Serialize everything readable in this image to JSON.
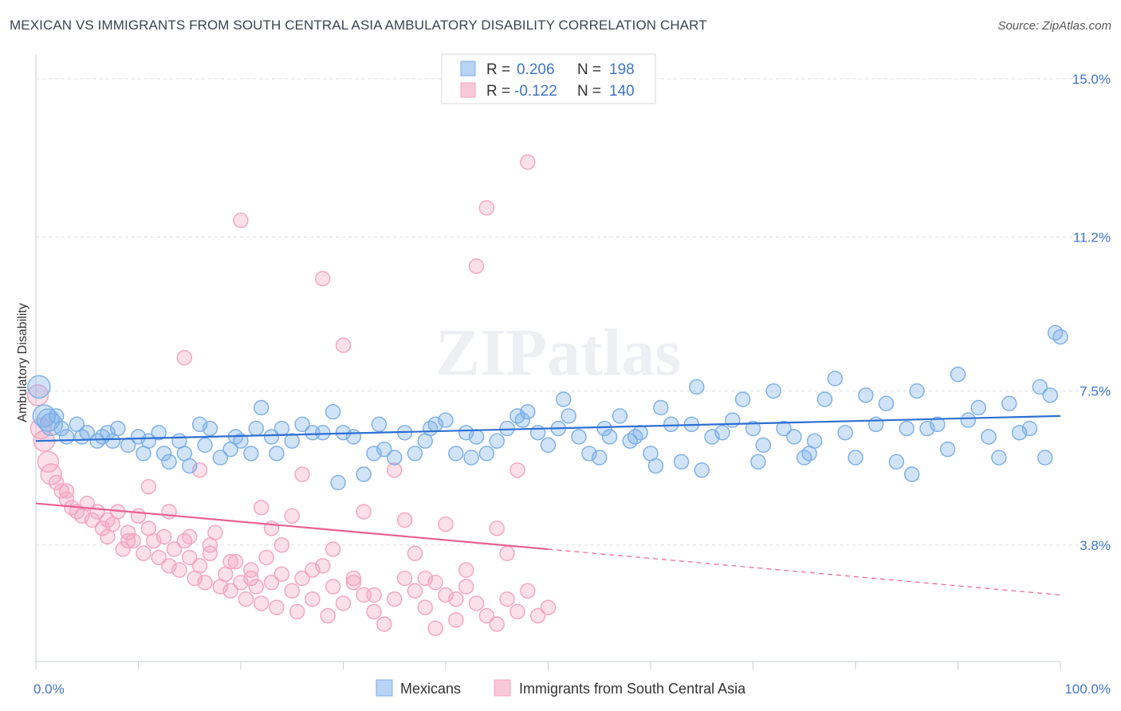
{
  "title": "MEXICAN VS IMMIGRANTS FROM SOUTH CENTRAL ASIA AMBULATORY DISABILITY CORRELATION CHART",
  "source": "Source: ZipAtlas.com",
  "watermark": "ZIPatlas",
  "chart_data": {
    "type": "scatter",
    "title": "MEXICAN VS IMMIGRANTS FROM SOUTH CENTRAL ASIA AMBULATORY DISABILITY CORRELATION CHART",
    "xlabel": "",
    "ylabel": "Ambulatory Disability",
    "xlim": [
      0,
      100
    ],
    "ylim": [
      1.0,
      15.4
    ],
    "x_tick_labels": [
      "0.0%",
      "100.0%"
    ],
    "y_ticks": [
      3.8,
      7.5,
      11.2,
      15.0
    ],
    "y_tick_labels": [
      "3.8%",
      "7.5%",
      "11.2%",
      "15.0%"
    ],
    "grid": true,
    "legend": {
      "placement": "top-center",
      "entries": [
        {
          "r_label": "R =",
          "r_value": "0.206",
          "n_label": "N =",
          "n_value": "198"
        },
        {
          "r_label": "R =",
          "r_value": "-0.122",
          "n_label": "N =",
          "n_value": "140"
        }
      ]
    },
    "series": [
      {
        "name": "Mexicans",
        "color": "#7aaee8",
        "line_color": "#2e6fd0",
        "trend": {
          "x0": 0,
          "y0": 6.3,
          "x1": 100,
          "y1": 6.9,
          "dashed_from": null
        },
        "points": [
          [
            0.3,
            7.6
          ],
          [
            0.8,
            6.9
          ],
          [
            1.2,
            6.8
          ],
          [
            1.5,
            6.7
          ],
          [
            2.0,
            6.9
          ],
          [
            2.5,
            6.6
          ],
          [
            3,
            6.4
          ],
          [
            4,
            6.7
          ],
          [
            4.5,
            6.4
          ],
          [
            5,
            6.5
          ],
          [
            6,
            6.3
          ],
          [
            6.5,
            6.4
          ],
          [
            7,
            6.5
          ],
          [
            7.5,
            6.3
          ],
          [
            8,
            6.6
          ],
          [
            9,
            6.2
          ],
          [
            10,
            6.4
          ],
          [
            10.5,
            6.0
          ],
          [
            11,
            6.3
          ],
          [
            12,
            6.5
          ],
          [
            12.5,
            6.0
          ],
          [
            13,
            5.8
          ],
          [
            14,
            6.3
          ],
          [
            14.5,
            6.0
          ],
          [
            15,
            5.7
          ],
          [
            16,
            6.7
          ],
          [
            16.5,
            6.2
          ],
          [
            17,
            6.6
          ],
          [
            18,
            5.9
          ],
          [
            19,
            6.1
          ],
          [
            19.5,
            6.4
          ],
          [
            20,
            6.3
          ],
          [
            21,
            6.0
          ],
          [
            21.5,
            6.6
          ],
          [
            22,
            7.1
          ],
          [
            23,
            6.4
          ],
          [
            23.5,
            6.0
          ],
          [
            24,
            6.6
          ],
          [
            25,
            6.3
          ],
          [
            26,
            6.7
          ],
          [
            27,
            6.5
          ],
          [
            28,
            6.5
          ],
          [
            29,
            7.0
          ],
          [
            29.5,
            5.3
          ],
          [
            30,
            6.5
          ],
          [
            31,
            6.4
          ],
          [
            32,
            5.5
          ],
          [
            33,
            6.0
          ],
          [
            33.5,
            6.7
          ],
          [
            34,
            6.1
          ],
          [
            35,
            5.9
          ],
          [
            36,
            6.5
          ],
          [
            37,
            6.0
          ],
          [
            38,
            6.3
          ],
          [
            38.5,
            6.6
          ],
          [
            39,
            6.7
          ],
          [
            40,
            6.8
          ],
          [
            41,
            6.0
          ],
          [
            42,
            6.5
          ],
          [
            42.5,
            5.9
          ],
          [
            43,
            6.4
          ],
          [
            44,
            6.0
          ],
          [
            45,
            6.3
          ],
          [
            46,
            6.6
          ],
          [
            47,
            6.9
          ],
          [
            47.5,
            6.8
          ],
          [
            48,
            7.0
          ],
          [
            49,
            6.5
          ],
          [
            50,
            6.2
          ],
          [
            51,
            6.6
          ],
          [
            51.5,
            7.3
          ],
          [
            52,
            6.9
          ],
          [
            53,
            6.4
          ],
          [
            54,
            6.0
          ],
          [
            55,
            5.9
          ],
          [
            55.5,
            6.6
          ],
          [
            56,
            6.4
          ],
          [
            57,
            6.9
          ],
          [
            58,
            6.3
          ],
          [
            58.5,
            6.4
          ],
          [
            59,
            6.5
          ],
          [
            60,
            6.0
          ],
          [
            60.5,
            5.7
          ],
          [
            61,
            7.1
          ],
          [
            62,
            6.7
          ],
          [
            63,
            5.8
          ],
          [
            64,
            6.7
          ],
          [
            64.5,
            7.6
          ],
          [
            65,
            5.6
          ],
          [
            66,
            6.4
          ],
          [
            67,
            6.5
          ],
          [
            68,
            6.8
          ],
          [
            69,
            7.3
          ],
          [
            70,
            6.6
          ],
          [
            70.5,
            5.8
          ],
          [
            71,
            6.2
          ],
          [
            72,
            7.5
          ],
          [
            73,
            6.6
          ],
          [
            74,
            6.4
          ],
          [
            75,
            5.9
          ],
          [
            75.5,
            6.0
          ],
          [
            76,
            6.3
          ],
          [
            77,
            7.3
          ],
          [
            78,
            7.8
          ],
          [
            79,
            6.5
          ],
          [
            80,
            5.9
          ],
          [
            81,
            7.4
          ],
          [
            82,
            6.7
          ],
          [
            83,
            7.2
          ],
          [
            84,
            5.8
          ],
          [
            85,
            6.6
          ],
          [
            85.5,
            5.5
          ],
          [
            86,
            7.5
          ],
          [
            87,
            6.6
          ],
          [
            88,
            6.7
          ],
          [
            89,
            6.1
          ],
          [
            90,
            7.9
          ],
          [
            91,
            6.8
          ],
          [
            92,
            7.1
          ],
          [
            93,
            6.4
          ],
          [
            94,
            5.9
          ],
          [
            95,
            7.2
          ],
          [
            96,
            6.5
          ],
          [
            97,
            6.6
          ],
          [
            98,
            7.6
          ],
          [
            98.5,
            5.9
          ],
          [
            99,
            7.4
          ],
          [
            99.5,
            8.9
          ],
          [
            100,
            8.8
          ]
        ]
      },
      {
        "name": "Immigrants from South Central Asia",
        "color": "#f4a3c0",
        "line_color": "#e96090",
        "trend": {
          "x0": 0,
          "y0": 4.8,
          "x1": 100,
          "y1": 2.6,
          "dashed_from": 50
        },
        "points": [
          [
            0.2,
            7.4
          ],
          [
            0.5,
            6.6
          ],
          [
            0.8,
            6.3
          ],
          [
            1.2,
            5.8
          ],
          [
            1.5,
            5.5
          ],
          [
            2,
            5.3
          ],
          [
            2.5,
            5.1
          ],
          [
            3,
            4.9
          ],
          [
            3.5,
            4.7
          ],
          [
            4,
            4.6
          ],
          [
            4.5,
            4.5
          ],
          [
            5,
            4.8
          ],
          [
            5.5,
            4.4
          ],
          [
            6,
            4.6
          ],
          [
            6.5,
            4.2
          ],
          [
            7,
            4.0
          ],
          [
            7.5,
            4.3
          ],
          [
            8,
            4.6
          ],
          [
            8.5,
            3.7
          ],
          [
            9,
            4.1
          ],
          [
            9.5,
            3.9
          ],
          [
            10,
            4.5
          ],
          [
            10.5,
            3.6
          ],
          [
            11,
            4.2
          ],
          [
            11.5,
            3.9
          ],
          [
            12,
            3.5
          ],
          [
            12.5,
            4.0
          ],
          [
            13,
            3.3
          ],
          [
            13.5,
            3.7
          ],
          [
            14,
            3.2
          ],
          [
            14.5,
            3.9
          ],
          [
            15,
            3.5
          ],
          [
            15.5,
            3.0
          ],
          [
            16,
            3.3
          ],
          [
            16.5,
            2.9
          ],
          [
            17,
            3.6
          ],
          [
            17.5,
            4.1
          ],
          [
            18,
            2.8
          ],
          [
            18.5,
            3.1
          ],
          [
            19,
            2.7
          ],
          [
            19.5,
            3.4
          ],
          [
            20,
            2.9
          ],
          [
            20.5,
            2.5
          ],
          [
            21,
            3.2
          ],
          [
            21.5,
            2.8
          ],
          [
            22,
            2.4
          ],
          [
            22.5,
            3.5
          ],
          [
            23,
            2.9
          ],
          [
            23.5,
            2.3
          ],
          [
            24,
            3.1
          ],
          [
            25,
            2.7
          ],
          [
            25.5,
            2.2
          ],
          [
            26,
            3.0
          ],
          [
            27,
            2.5
          ],
          [
            28,
            3.3
          ],
          [
            28.5,
            2.1
          ],
          [
            29,
            2.8
          ],
          [
            30,
            2.4
          ],
          [
            31,
            3.0
          ],
          [
            32,
            2.6
          ],
          [
            33,
            2.2
          ],
          [
            34,
            1.9
          ],
          [
            35,
            2.5
          ],
          [
            36,
            3.0
          ],
          [
            37,
            2.7
          ],
          [
            38,
            2.3
          ],
          [
            39,
            1.8
          ],
          [
            40,
            2.6
          ],
          [
            41,
            2.0
          ],
          [
            42,
            2.8
          ],
          [
            43,
            2.4
          ],
          [
            44,
            2.1
          ],
          [
            45,
            1.9
          ],
          [
            46,
            2.5
          ],
          [
            47,
            2.2
          ],
          [
            48,
            2.7
          ],
          [
            49,
            2.1
          ],
          [
            50,
            2.3
          ],
          [
            14.5,
            8.3
          ],
          [
            16,
            5.6
          ],
          [
            20,
            11.6
          ],
          [
            23,
            4.2
          ],
          [
            26,
            5.5
          ],
          [
            28,
            10.2
          ],
          [
            30,
            8.6
          ],
          [
            32,
            4.6
          ],
          [
            35,
            5.6
          ],
          [
            36,
            4.4
          ],
          [
            40,
            4.3
          ],
          [
            43,
            10.5
          ],
          [
            44,
            11.9
          ],
          [
            45,
            4.2
          ],
          [
            46,
            3.6
          ],
          [
            47,
            5.6
          ],
          [
            48,
            13.0
          ],
          [
            3,
            5.1
          ],
          [
            7,
            4.4
          ],
          [
            9,
            3.9
          ],
          [
            11,
            5.2
          ],
          [
            13,
            4.6
          ],
          [
            15,
            4.0
          ],
          [
            17,
            3.8
          ],
          [
            19,
            3.4
          ],
          [
            21,
            3.0
          ],
          [
            22,
            4.7
          ],
          [
            24,
            3.8
          ],
          [
            25,
            4.5
          ],
          [
            27,
            3.2
          ],
          [
            29,
            3.7
          ],
          [
            31,
            2.9
          ],
          [
            33,
            2.6
          ],
          [
            37,
            3.6
          ],
          [
            38,
            3.0
          ],
          [
            39,
            2.9
          ],
          [
            41,
            2.5
          ],
          [
            42,
            3.2
          ]
        ]
      }
    ]
  }
}
